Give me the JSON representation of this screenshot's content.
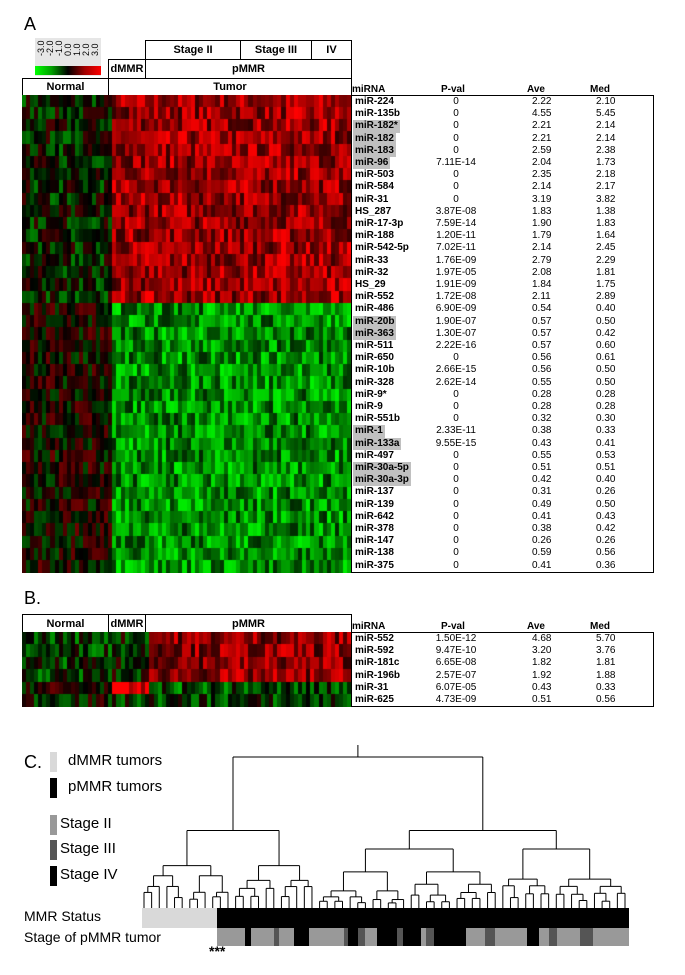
{
  "panels": {
    "a": "A",
    "b": "B.",
    "c": "C."
  },
  "panelA": {
    "scale_labels": [
      "-3.0",
      "-2.0",
      "-1.0",
      "0.0",
      "1.0",
      "2.0",
      "3.0"
    ],
    "stage_labels": [
      "Stage II",
      "Stage III",
      "IV"
    ],
    "dmmr_label": "dMMR",
    "pmmr_label": "pMMR",
    "normal_label": "Normal",
    "tumor_label": "Tumor",
    "table_header": {
      "mirna": "miRNA",
      "pval": "P-val",
      "ave": "Ave",
      "med": "Med"
    },
    "rows": [
      {
        "mirna": "miR-224",
        "pval": "0",
        "ave": "2.22",
        "med": "2.10",
        "hl": false
      },
      {
        "mirna": "miR-135b",
        "pval": "0",
        "ave": "4.55",
        "med": "5.45",
        "hl": false
      },
      {
        "mirna": "miR-182*",
        "pval": "0",
        "ave": "2.21",
        "med": "2.14",
        "hl": true
      },
      {
        "mirna": "miR-182",
        "pval": "0",
        "ave": "2.21",
        "med": "2.14",
        "hl": true
      },
      {
        "mirna": "miR-183",
        "pval": "0",
        "ave": "2.59",
        "med": "2.38",
        "hl": true
      },
      {
        "mirna": "miR-96",
        "pval": "7.11E-14",
        "ave": "2.04",
        "med": "1.73",
        "hl": true
      },
      {
        "mirna": "miR-503",
        "pval": "0",
        "ave": "2.35",
        "med": "2.18",
        "hl": false
      },
      {
        "mirna": "miR-584",
        "pval": "0",
        "ave": "2.14",
        "med": "2.17",
        "hl": false
      },
      {
        "mirna": "miR-31",
        "pval": "0",
        "ave": "3.19",
        "med": "3.82",
        "hl": false
      },
      {
        "mirna": "HS_287",
        "pval": "3.87E-08",
        "ave": "1.83",
        "med": "1.38",
        "hl": false
      },
      {
        "mirna": "miR-17-3p",
        "pval": "7.59E-14",
        "ave": "1.90",
        "med": "1.83",
        "hl": false
      },
      {
        "mirna": "miR-188",
        "pval": "1.20E-11",
        "ave": "1.79",
        "med": "1.64",
        "hl": false
      },
      {
        "mirna": "miR-542-5p",
        "pval": "7.02E-11",
        "ave": "2.14",
        "med": "2.45",
        "hl": false
      },
      {
        "mirna": "miR-33",
        "pval": "1.76E-09",
        "ave": "2.79",
        "med": "2.29",
        "hl": false
      },
      {
        "mirna": "miR-32",
        "pval": "1.97E-05",
        "ave": "2.08",
        "med": "1.81",
        "hl": false
      },
      {
        "mirna": "HS_29",
        "pval": "1.91E-09",
        "ave": "1.84",
        "med": "1.75",
        "hl": false
      },
      {
        "mirna": "miR-552",
        "pval": "1.72E-08",
        "ave": "2.11",
        "med": "2.89",
        "hl": false
      },
      {
        "mirna": "miR-486",
        "pval": "6.90E-09",
        "ave": "0.54",
        "med": "0.40",
        "hl": false
      },
      {
        "mirna": "miR-20b",
        "pval": "1.90E-07",
        "ave": "0.57",
        "med": "0.50",
        "hl": true
      },
      {
        "mirna": "miR-363",
        "pval": "1.30E-07",
        "ave": "0.57",
        "med": "0.42",
        "hl": true
      },
      {
        "mirna": "miR-511",
        "pval": "2.22E-16",
        "ave": "0.57",
        "med": "0.60",
        "hl": false
      },
      {
        "mirna": "miR-650",
        "pval": "0",
        "ave": "0.56",
        "med": "0.61",
        "hl": false
      },
      {
        "mirna": "miR-10b",
        "pval": "2.66E-15",
        "ave": "0.56",
        "med": "0.50",
        "hl": false
      },
      {
        "mirna": "miR-328",
        "pval": "2.62E-14",
        "ave": "0.55",
        "med": "0.50",
        "hl": false
      },
      {
        "mirna": "miR-9*",
        "pval": "0",
        "ave": "0.28",
        "med": "0.28",
        "hl": false
      },
      {
        "mirna": "miR-9",
        "pval": "0",
        "ave": "0.28",
        "med": "0.28",
        "hl": false
      },
      {
        "mirna": "miR-551b",
        "pval": "0",
        "ave": "0.32",
        "med": "0.30",
        "hl": false
      },
      {
        "mirna": "miR-1",
        "pval": "2.33E-11",
        "ave": "0.38",
        "med": "0.33",
        "hl": true
      },
      {
        "mirna": "miR-133a",
        "pval": "9.55E-15",
        "ave": "0.43",
        "med": "0.41",
        "hl": true
      },
      {
        "mirna": "miR-497",
        "pval": "0",
        "ave": "0.55",
        "med": "0.53",
        "hl": false
      },
      {
        "mirna": "miR-30a-5p",
        "pval": "0",
        "ave": "0.51",
        "med": "0.51",
        "hl": true
      },
      {
        "mirna": "miR-30a-3p",
        "pval": "0",
        "ave": "0.42",
        "med": "0.40",
        "hl": true
      },
      {
        "mirna": "miR-137",
        "pval": "0",
        "ave": "0.31",
        "med": "0.26",
        "hl": false
      },
      {
        "mirna": "miR-139",
        "pval": "0",
        "ave": "0.49",
        "med": "0.50",
        "hl": false
      },
      {
        "mirna": "miR-642",
        "pval": "0",
        "ave": "0.41",
        "med": "0.43",
        "hl": false
      },
      {
        "mirna": "miR-378",
        "pval": "0",
        "ave": "0.38",
        "med": "0.42",
        "hl": false
      },
      {
        "mirna": "miR-147",
        "pval": "0",
        "ave": "0.26",
        "med": "0.26",
        "hl": false
      },
      {
        "mirna": "miR-138",
        "pval": "0",
        "ave": "0.59",
        "med": "0.56",
        "hl": false
      },
      {
        "mirna": "miR-375",
        "pval": "0",
        "ave": "0.41",
        "med": "0.36",
        "hl": false
      }
    ]
  },
  "panelB": {
    "normal_label": "Normal",
    "dmmr_label": "dMMR",
    "pmmr_label": "pMMR",
    "table_header": {
      "mirna": "miRNA",
      "pval": "P-val",
      "ave": "Ave",
      "med": "Med"
    },
    "rows": [
      {
        "mirna": "miR-552",
        "pval": "1.50E-12",
        "ave": "4.68",
        "med": "5.70"
      },
      {
        "mirna": "miR-592",
        "pval": "9.47E-10",
        "ave": "3.20",
        "med": "3.76"
      },
      {
        "mirna": "miR-181c",
        "pval": "6.65E-08",
        "ave": "1.82",
        "med": "1.81"
      },
      {
        "mirna": "miR-196b",
        "pval": "2.57E-07",
        "ave": "1.92",
        "med": "1.88"
      },
      {
        "mirna": "miR-31",
        "pval": "6.07E-05",
        "ave": "0.43",
        "med": "0.33"
      },
      {
        "mirna": "miR-625",
        "pval": "4.73E-09",
        "ave": "0.51",
        "med": "0.56"
      }
    ]
  },
  "panelC": {
    "legend": [
      {
        "label": "dMMR tumors",
        "color": "#d9d9d9"
      },
      {
        "label": "pMMR tumors",
        "color": "#000000"
      },
      {
        "label": "Stage  II",
        "color": "#999999"
      },
      {
        "label": "Stage  III",
        "color": "#555555"
      },
      {
        "label": "Stage  IV",
        "color": "#000000"
      }
    ],
    "mmr_status_label": "MMR Status",
    "stage_label": "Stage of pMMR tumor",
    "significance": "***"
  },
  "colors": {
    "up": "#ff0000",
    "down": "#00ff00",
    "neutral": "#000000"
  }
}
